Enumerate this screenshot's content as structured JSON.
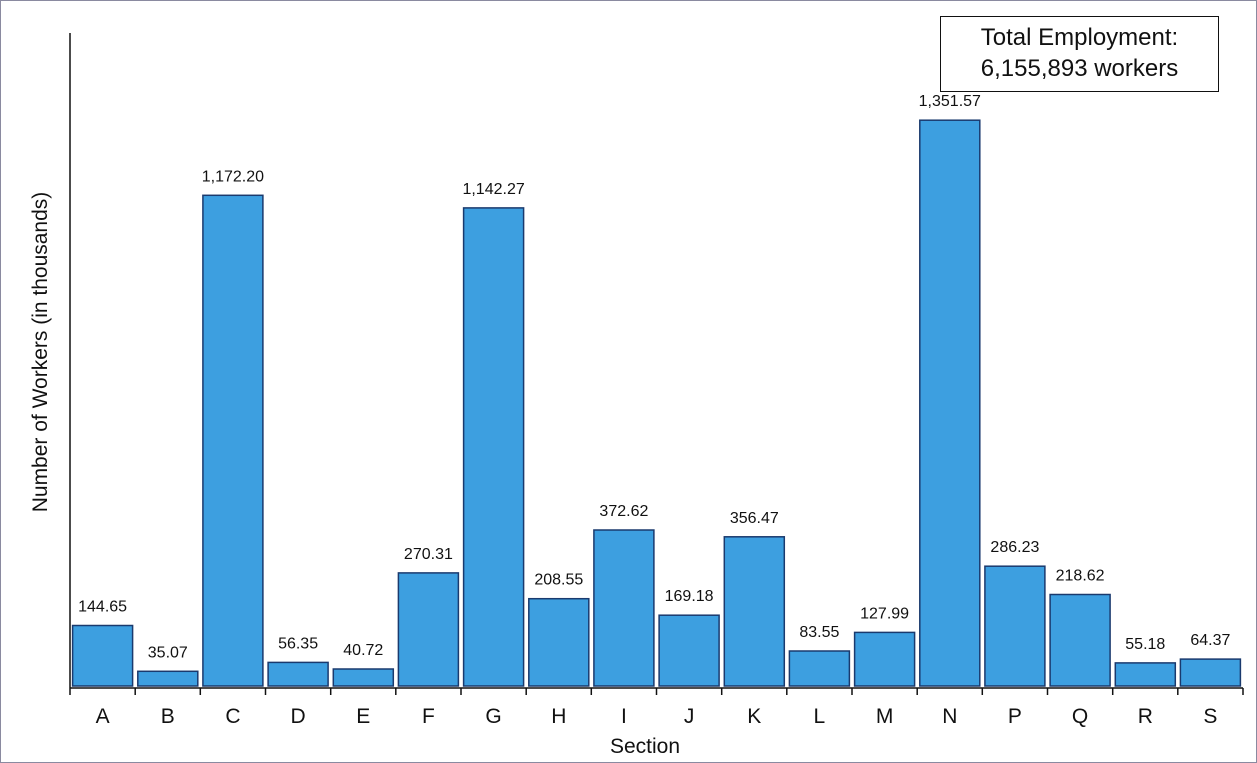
{
  "chart_data": {
    "type": "bar",
    "categories": [
      "A",
      "B",
      "C",
      "D",
      "E",
      "F",
      "G",
      "H",
      "I",
      "J",
      "K",
      "L",
      "M",
      "N",
      "P",
      "Q",
      "R",
      "S"
    ],
    "values": [
      144.65,
      35.07,
      1172.2,
      56.35,
      40.72,
      270.31,
      1142.27,
      208.55,
      372.62,
      169.18,
      356.47,
      83.55,
      127.99,
      1351.57,
      286.23,
      218.62,
      55.18,
      64.37
    ],
    "value_labels": [
      "144.65",
      "35.07",
      "1,172.20",
      "56.35",
      "40.72",
      "270.31",
      "1,142.27",
      "208.55",
      "372.62",
      "169.18",
      "356.47",
      "83.55",
      "127.99",
      "1,351.57",
      "286.23",
      "218.62",
      "55.18",
      "64.37"
    ],
    "title": "",
    "xlabel": "Section",
    "ylabel": "Number of Workers (in thousands)",
    "ylim": [
      0,
      1560
    ],
    "grid": false,
    "legend": "none",
    "bar_color": "#3d9fe0",
    "bar_edge_color": "#1a3a6e",
    "annotation": {
      "line1": "Total Employment:",
      "line2": "6,155,893 workers",
      "placement": "top-right"
    }
  }
}
